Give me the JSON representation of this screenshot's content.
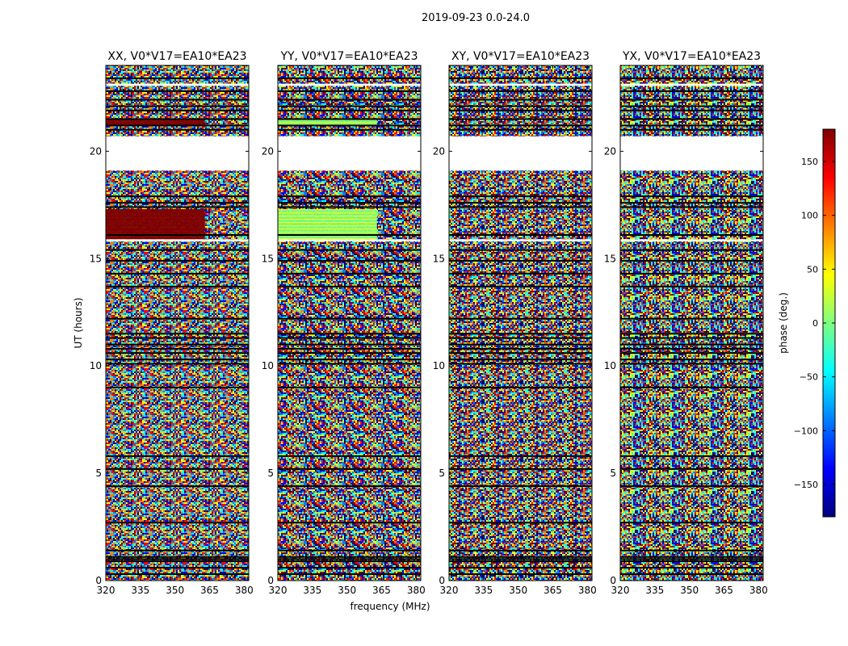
{
  "chart_data": {
    "type": "heatmap",
    "suptitle": "2019-09-23 0.0-24.0",
    "xlabel": "frequency (MHz)",
    "ylabel": "UT (hours)",
    "xlim": [
      320,
      382
    ],
    "ylim": [
      0,
      24
    ],
    "xticks": [
      320,
      335,
      350,
      365,
      380
    ],
    "yticks": [
      0,
      5,
      10,
      15,
      20
    ],
    "ytick_labels": [
      "0",
      "5",
      "10",
      "15",
      "20"
    ],
    "xtick_labels": [
      "320",
      "335",
      "350",
      "365",
      "380"
    ],
    "colormap": "jet",
    "colors": {
      "jet": [
        "#00007f",
        "#0000ff",
        "#007fff",
        "#00ffff",
        "#7fff7f",
        "#ffff00",
        "#ff7f00",
        "#ff0000",
        "#7f0000"
      ],
      "flag": "#000000",
      "blank": "#ffffff"
    },
    "colorbar": {
      "label": "phase (deg.)",
      "range": [
        -180,
        180
      ],
      "ticks": [
        -150,
        -100,
        -50,
        0,
        50,
        100,
        150
      ],
      "tick_labels": [
        "−150",
        "−100",
        "−50",
        "0",
        "50",
        "100",
        "150"
      ]
    },
    "blank_ranges_hours": [
      [
        19.1,
        20.7
      ],
      [
        23.05,
        23.15
      ],
      [
        15.8,
        15.9
      ]
    ],
    "flagged_rows_hours": [
      0.3,
      0.6,
      0.9,
      1.0,
      1.1,
      1.4,
      2.7,
      4.4,
      5.2,
      5.8,
      9.0,
      10.1,
      10.3,
      10.6,
      10.8,
      11.0,
      11.3,
      11.5,
      12.2,
      13.7,
      14.3,
      14.9,
      15.4,
      16.1,
      17.4,
      17.6,
      17.9,
      21.0,
      21.2,
      21.5,
      21.9,
      22.1,
      22.4,
      22.8,
      23.4
    ],
    "panels": [
      {
        "name": "XX",
        "title": "XX, V0*V17=EA10*EA23",
        "coherent": [
          {
            "t0": 21.2,
            "t1": 21.5,
            "phase": 140
          },
          {
            "t0": 15.9,
            "t1": 17.3,
            "phase": 145
          }
        ],
        "coherent_until_mhz": 363
      },
      {
        "name": "YY",
        "title": "YY, V0*V17=EA10*EA23",
        "coherent": [
          {
            "t0": 21.2,
            "t1": 21.5,
            "phase": 5
          },
          {
            "t0": 15.9,
            "t1": 17.3,
            "phase": 10
          }
        ],
        "coherent_until_mhz": 363
      },
      {
        "name": "XY",
        "title": "XY, V0*V17=EA10*EA23",
        "coherent": [],
        "coherent_until_mhz": 363
      },
      {
        "name": "YX",
        "title": "YX, V0*V17=EA10*EA23",
        "coherent": [],
        "coherent_until_mhz": 363
      }
    ]
  }
}
